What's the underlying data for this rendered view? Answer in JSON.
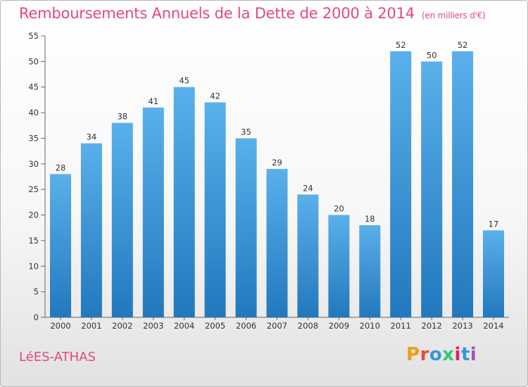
{
  "header": {
    "title": "Remboursements Annuels de la Dette de 2000 à 2014",
    "unit_note": "(en milliers d'€)"
  },
  "footer": {
    "commune": "LéES-ATHAS",
    "brand": "Proxiti",
    "brand_colors": [
      "#f39c12",
      "#e74c3c",
      "#3498db",
      "#2ecc71",
      "#e91e63",
      "#3498db",
      "#9b59b6"
    ]
  },
  "colors": {
    "accent": "#e34a74",
    "bar_top": "#5ab0ea",
    "bar_bottom": "#2278bd"
  },
  "chart_data": {
    "type": "bar",
    "title": "Remboursements Annuels de la Dette de 2000 à 2014",
    "xlabel": "",
    "ylabel": "",
    "categories": [
      "2000",
      "2001",
      "2002",
      "2003",
      "2004",
      "2005",
      "2006",
      "2007",
      "2008",
      "2009",
      "2010",
      "2011",
      "2012",
      "2013",
      "2014"
    ],
    "values": [
      28,
      34,
      38,
      41,
      45,
      42,
      35,
      29,
      24,
      20,
      18,
      52,
      50,
      52,
      17
    ],
    "ylim": [
      0,
      55
    ],
    "yticks": [
      0,
      5,
      10,
      15,
      20,
      25,
      30,
      35,
      40,
      45,
      50,
      55
    ],
    "grid": false,
    "legend": "none"
  }
}
